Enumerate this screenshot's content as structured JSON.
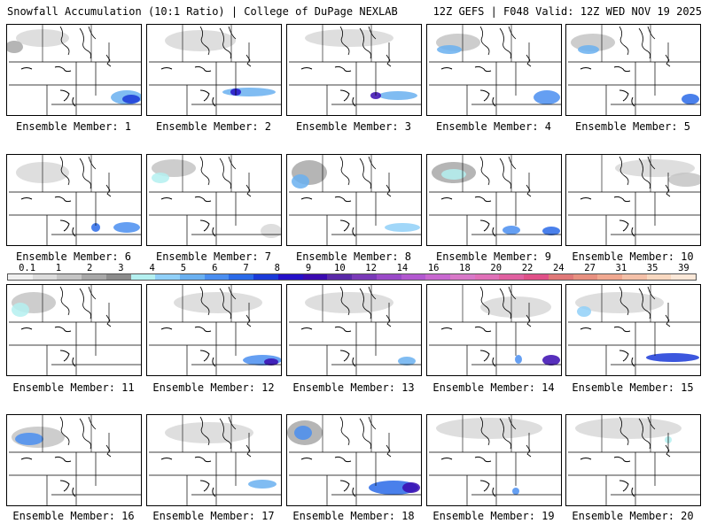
{
  "header": {
    "title": "Snowfall Accumulation (10:1 Ratio) | College of DuPage NEXLAB",
    "run_info": "12Z GEFS | F048 Valid: 12Z WED NOV 19 2025"
  },
  "colorbar": {
    "labels": [
      "0.1",
      "1",
      "2",
      "3",
      "4",
      "5",
      "6",
      "7",
      "8",
      "9",
      "10",
      "12",
      "14",
      "16",
      "18",
      "20",
      "22",
      "24",
      "27",
      "31",
      "35",
      "39"
    ],
    "colors": [
      "#f0f0f0",
      "#dcdcdc",
      "#c4c4c4",
      "#a8a8a8",
      "#8c8c8c",
      "#b4f0f0",
      "#90d0f8",
      "#6ab0f0",
      "#4a8ef0",
      "#2a6ae8",
      "#1a3ad8",
      "#2410c8",
      "#3a0ab0",
      "#5a2aa8",
      "#7a3ab8",
      "#9a4ac8",
      "#b258d0",
      "#c868d0",
      "#d878c8",
      "#e070b8",
      "#e060a0",
      "#e05088",
      "#e07878",
      "#e89080",
      "#f0a890",
      "#f4c0a8",
      "#f8d8c0",
      "#fbe8d8"
    ]
  },
  "members": [
    {
      "label": "Ensemble Member: 1"
    },
    {
      "label": "Ensemble Member: 2"
    },
    {
      "label": "Ensemble Member: 3"
    },
    {
      "label": "Ensemble Member: 4"
    },
    {
      "label": "Ensemble Member: 5"
    },
    {
      "label": "Ensemble Member: 6"
    },
    {
      "label": "Ensemble Member: 7"
    },
    {
      "label": "Ensemble Member: 8"
    },
    {
      "label": "Ensemble Member: 9"
    },
    {
      "label": "Ensemble Member: 10"
    },
    {
      "label": "Ensemble Member: 11"
    },
    {
      "label": "Ensemble Member: 12"
    },
    {
      "label": "Ensemble Member: 13"
    },
    {
      "label": "Ensemble Member: 14"
    },
    {
      "label": "Ensemble Member: 15"
    },
    {
      "label": "Ensemble Member: 16"
    },
    {
      "label": "Ensemble Member: 17"
    },
    {
      "label": "Ensemble Member: 18"
    },
    {
      "label": "Ensemble Member: 19"
    },
    {
      "label": "Ensemble Member: 20"
    }
  ]
}
